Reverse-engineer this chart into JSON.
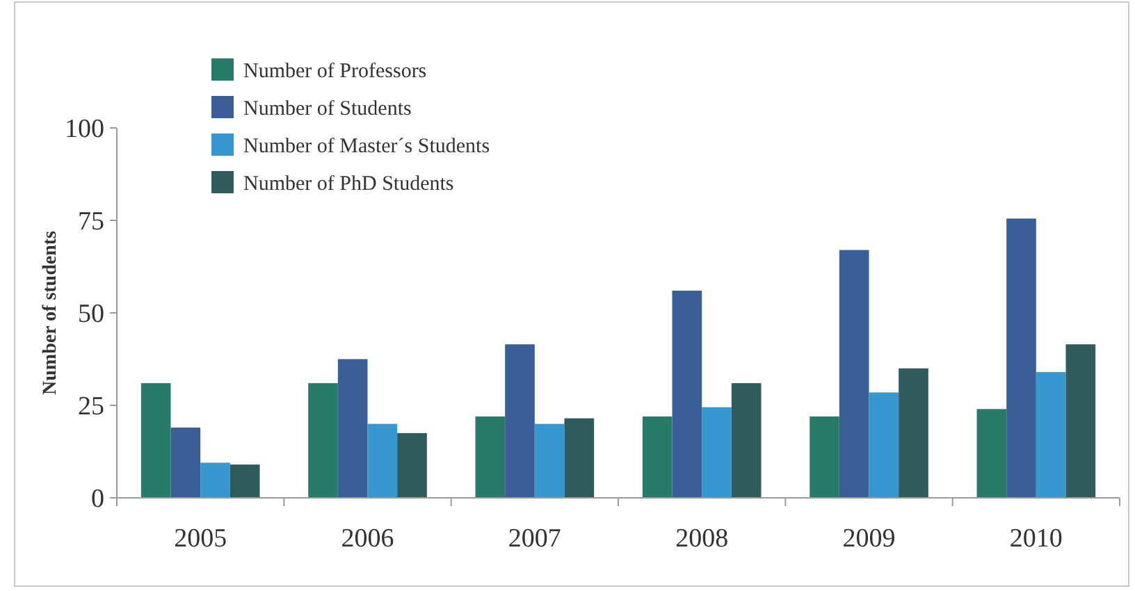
{
  "chart_data": {
    "type": "bar",
    "ylabel": "Number of students",
    "categories": [
      "2005",
      "2006",
      "2007",
      "2008",
      "2009",
      "2010"
    ],
    "series": [
      {
        "name": "Number of Professors",
        "color": "#2a7a6c",
        "values": [
          31,
          31,
          22,
          22,
          22,
          24
        ]
      },
      {
        "name": "Number of Students",
        "color": "#3a5f96",
        "values": [
          19,
          37.5,
          41.5,
          56,
          67,
          75.5
        ]
      },
      {
        "name": "Number of Master´s Students",
        "color": "#3798cf",
        "values": [
          9.5,
          20,
          20,
          24.5,
          28.5,
          34
        ]
      },
      {
        "name": "Number of PhD Students",
        "color": "#2f5b5c",
        "values": [
          9,
          17.5,
          21.5,
          31,
          35,
          41.5
        ]
      }
    ],
    "ylim": [
      0,
      100
    ],
    "yticks": [
      0,
      25,
      50,
      75,
      100
    ],
    "legend": "top left"
  }
}
